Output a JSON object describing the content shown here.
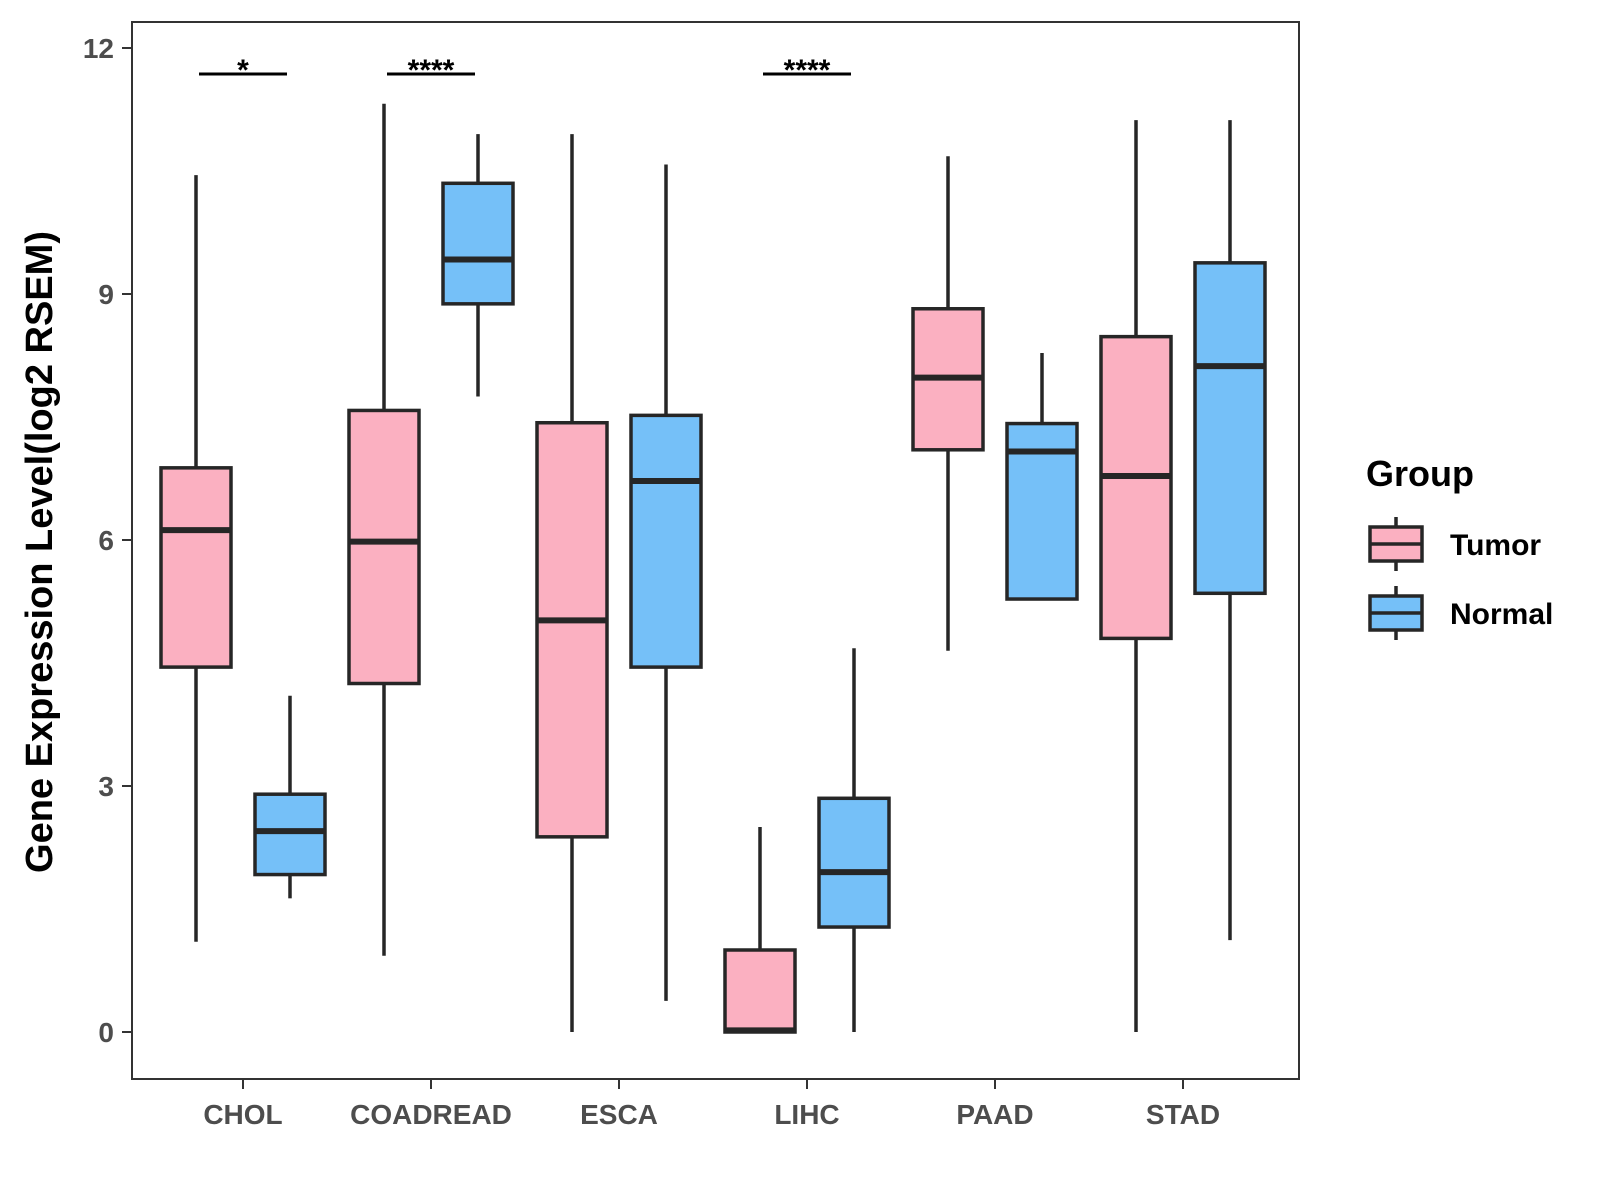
{
  "chart_data": {
    "type": "boxplot",
    "title": "",
    "xlabel": "",
    "ylabel": "Gene Expression Level(log2 RSEM)",
    "ylim": [
      -0.55,
      12.3
    ],
    "yticks": [
      0,
      3,
      6,
      9,
      12
    ],
    "categories": [
      "CHOL",
      "COADREAD",
      "ESCA",
      "LIHC",
      "PAAD",
      "STAD"
    ],
    "legend": {
      "title": "Group",
      "position": "right"
    },
    "series": [
      {
        "name": "Tumor",
        "color": "#FBB0C1",
        "boxes": [
          {
            "min": 1.1,
            "q1": 4.45,
            "median": 6.12,
            "q3": 6.88,
            "max": 10.45
          },
          {
            "min": 0.93,
            "q1": 4.25,
            "median": 5.98,
            "q3": 7.58,
            "max": 11.32
          },
          {
            "min": 0.0,
            "q1": 2.38,
            "median": 5.02,
            "q3": 7.43,
            "max": 10.95
          },
          {
            "min": 0.0,
            "q1": 0.0,
            "median": 0.02,
            "q3": 1.0,
            "max": 2.5
          },
          {
            "min": 4.65,
            "q1": 7.1,
            "median": 7.98,
            "q3": 8.82,
            "max": 10.68
          },
          {
            "min": 0.0,
            "q1": 4.8,
            "median": 6.78,
            "q3": 8.48,
            "max": 11.12
          }
        ]
      },
      {
        "name": "Normal",
        "color": "#75C0F8",
        "boxes": [
          {
            "min": 1.63,
            "q1": 1.92,
            "median": 2.45,
            "q3": 2.9,
            "max": 4.1
          },
          {
            "min": 7.75,
            "q1": 8.88,
            "median": 9.42,
            "q3": 10.35,
            "max": 10.95
          },
          {
            "min": 0.38,
            "q1": 4.45,
            "median": 6.72,
            "q3": 7.52,
            "max": 10.58
          },
          {
            "min": 0.0,
            "q1": 1.28,
            "median": 1.95,
            "q3": 2.85,
            "max": 4.68
          },
          {
            "min": 5.28,
            "q1": 5.28,
            "median": 7.08,
            "q3": 7.42,
            "max": 8.28
          },
          {
            "min": 1.12,
            "q1": 5.35,
            "median": 8.12,
            "q3": 9.38,
            "max": 11.12
          }
        ]
      }
    ],
    "significance": [
      {
        "category": "CHOL",
        "label": "*"
      },
      {
        "category": "COADREAD",
        "label": "****"
      },
      {
        "category": "LIHC",
        "label": "****"
      }
    ]
  }
}
